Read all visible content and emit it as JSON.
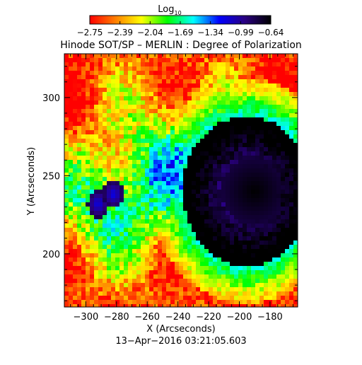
{
  "chart_data": {
    "type": "heatmap",
    "title": "Hinode SOT/SP – MERLIN : Degree of Polarization",
    "colorbar": {
      "label_main": "Log",
      "label_sub": "10",
      "ticks": [
        "−2.75",
        "−2.39",
        "−2.04",
        "−1.69",
        "−1.34",
        "−0.99",
        "−0.64"
      ],
      "range": [
        -2.75,
        -0.64
      ],
      "colors": [
        "#ff0000",
        "#ff7f00",
        "#ffff00",
        "#00ff00",
        "#00ffff",
        "#0000ff",
        "#2a0080",
        "#000000"
      ]
    },
    "xlabel": "X (Arcseconds)",
    "ylabel": "Y (Arcseconds)",
    "xlim": [
      -314,
      -162
    ],
    "ylim": [
      166,
      328
    ],
    "x_ticks": [
      -300,
      -280,
      -260,
      -240,
      -220,
      -200,
      -180
    ],
    "y_ticks": [
      200,
      250,
      300
    ],
    "x_tick_labels": [
      "−300",
      "−280",
      "−260",
      "−240",
      "−220",
      "−200",
      "−180"
    ],
    "y_tick_labels": [
      "200",
      "250",
      "300"
    ],
    "x_minor_step": 5,
    "y_minor_step": 10,
    "features": [
      {
        "kind": "sunspot-umbra",
        "x": -190,
        "y": 240,
        "log_value": -0.64
      },
      {
        "kind": "penumbra",
        "x": -195,
        "y": 240,
        "log_value": -1.1
      },
      {
        "kind": "pore",
        "x": -292,
        "y": 232,
        "log_value": -1.2
      },
      {
        "kind": "pore",
        "x": -282,
        "y": 238,
        "log_value": -1.2
      }
    ],
    "background_log_value": -2.6
  },
  "footer": {
    "timestamp": "13−Apr−2016 03:21:05.603"
  }
}
